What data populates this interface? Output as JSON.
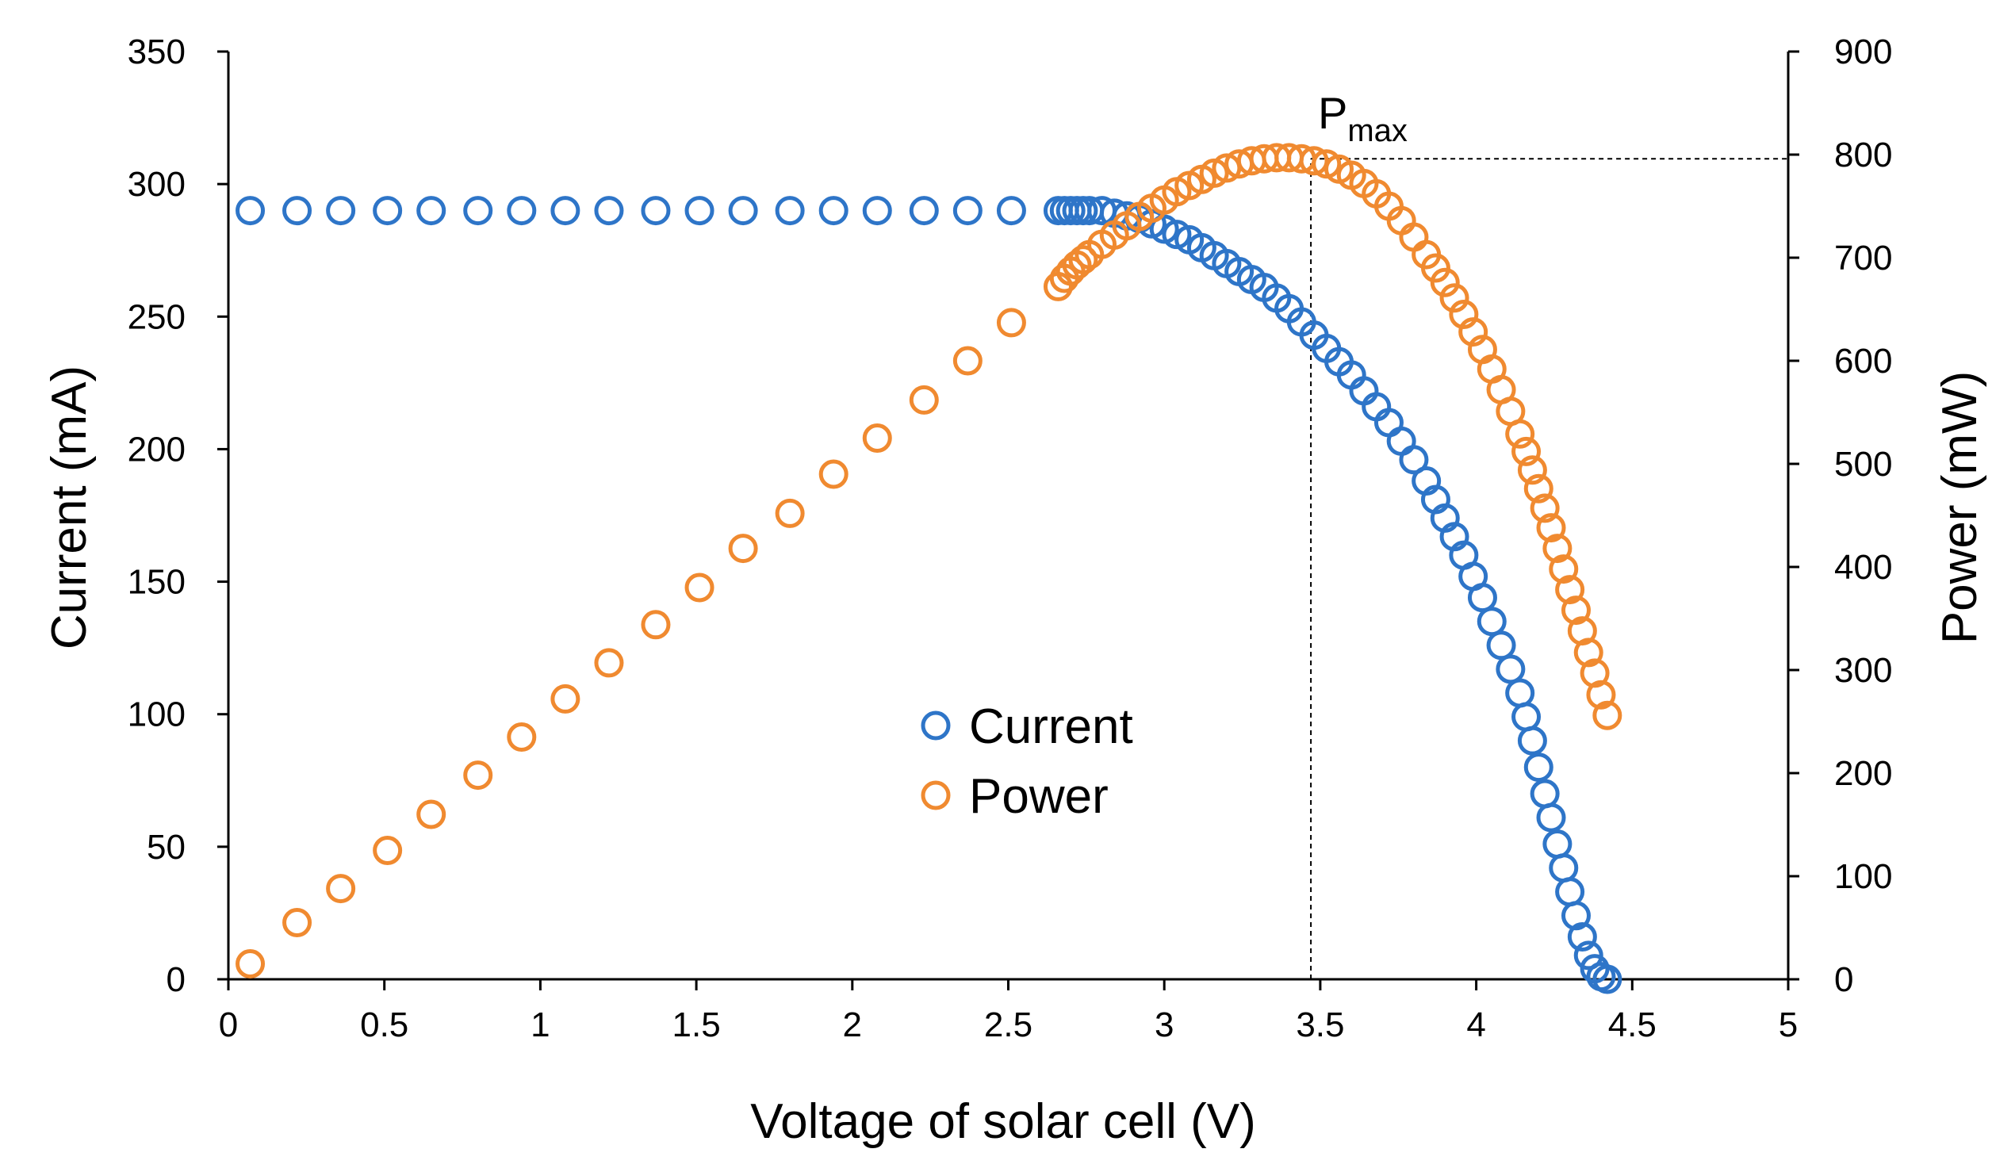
{
  "chart_data": {
    "type": "scatter",
    "xlabel": "Voltage of solar cell (V)",
    "ylabel_left": "Current (mA)",
    "ylabel_right": "Power (mW)",
    "xlim": [
      0,
      5
    ],
    "ylim_left": [
      0,
      350
    ],
    "ylim_right": [
      0,
      900
    ],
    "xticks": [
      "0",
      "0.5",
      "1",
      "1.5",
      "2",
      "2.5",
      "3",
      "3.5",
      "4",
      "4.5",
      "5"
    ],
    "yticks_left": [
      "0",
      "50",
      "100",
      "150",
      "200",
      "250",
      "300",
      "350"
    ],
    "yticks_right": [
      "0",
      "100",
      "200",
      "300",
      "400",
      "500",
      "600",
      "700",
      "800",
      "900"
    ],
    "grid": false,
    "legend": {
      "position": "center",
      "entries": [
        "Current",
        "Power"
      ]
    },
    "annotation": {
      "label": "P",
      "subscript": "max",
      "x": 3.47,
      "y_power": 796
    },
    "colors": {
      "current": "#2E75C8",
      "power": "#F08A30",
      "axis": "#000000"
    },
    "series": [
      {
        "name": "Current",
        "axis": "left",
        "x": [
          0.07,
          0.22,
          0.36,
          0.51,
          0.65,
          0.8,
          0.94,
          1.08,
          1.22,
          1.37,
          1.51,
          1.65,
          1.8,
          1.94,
          2.08,
          2.23,
          2.37,
          2.51,
          2.66,
          2.68,
          2.7,
          2.72,
          2.74,
          2.76,
          2.8,
          2.84,
          2.88,
          2.92,
          2.96,
          3.0,
          3.04,
          3.08,
          3.12,
          3.16,
          3.2,
          3.24,
          3.28,
          3.32,
          3.36,
          3.4,
          3.44,
          3.48,
          3.52,
          3.56,
          3.6,
          3.64,
          3.68,
          3.72,
          3.76,
          3.8,
          3.84,
          3.87,
          3.9,
          3.93,
          3.96,
          3.99,
          4.02,
          4.05,
          4.08,
          4.11,
          4.14,
          4.16,
          4.18,
          4.2,
          4.22,
          4.24,
          4.26,
          4.28,
          4.3,
          4.32,
          4.34,
          4.36,
          4.38,
          4.4,
          4.42
        ],
        "values": [
          290,
          290,
          290,
          290,
          290,
          290,
          290,
          290,
          290,
          290,
          290,
          290,
          290,
          290,
          290,
          290,
          290,
          290,
          290,
          290,
          290,
          290,
          290,
          290,
          290,
          289,
          288,
          287,
          285,
          283,
          281,
          279,
          276,
          273,
          270,
          267,
          264,
          261,
          257,
          253,
          248,
          243,
          238,
          233,
          228,
          222,
          216,
          210,
          203,
          196,
          188,
          181,
          174,
          167,
          160,
          152,
          144,
          135,
          126,
          117,
          108,
          99,
          90,
          80,
          70,
          61,
          51,
          42,
          33,
          24,
          16,
          9,
          4,
          1,
          0
        ]
      },
      {
        "name": "Power",
        "axis": "right",
        "x": [
          0.07,
          0.22,
          0.36,
          0.51,
          0.65,
          0.8,
          0.94,
          1.08,
          1.22,
          1.37,
          1.51,
          1.65,
          1.8,
          1.94,
          2.08,
          2.23,
          2.37,
          2.51,
          2.66,
          2.68,
          2.7,
          2.72,
          2.74,
          2.76,
          2.8,
          2.84,
          2.88,
          2.92,
          2.96,
          3.0,
          3.04,
          3.08,
          3.12,
          3.16,
          3.2,
          3.24,
          3.28,
          3.32,
          3.36,
          3.4,
          3.44,
          3.48,
          3.52,
          3.56,
          3.6,
          3.64,
          3.68,
          3.72,
          3.76,
          3.8,
          3.84,
          3.87,
          3.9,
          3.93,
          3.96,
          3.99,
          4.02,
          4.05,
          4.08,
          4.11,
          4.14,
          4.16,
          4.18,
          4.2,
          4.22,
          4.24,
          4.26,
          4.28,
          4.3,
          4.32,
          4.34,
          4.36,
          4.38,
          4.4,
          4.42
        ],
        "values": [
          15,
          55,
          88,
          125,
          160,
          198,
          235,
          272,
          307,
          344,
          380,
          418,
          452,
          490,
          525,
          562,
          600,
          637,
          672,
          680,
          687,
          693,
          698,
          703,
          713,
          722,
          731,
          740,
          748,
          756,
          764,
          770,
          776,
          782,
          787,
          791,
          794,
          796,
          797,
          797,
          796,
          794,
          791,
          786,
          780,
          772,
          762,
          750,
          736,
          720,
          703,
          690,
          676,
          661,
          645,
          628,
          611,
          592,
          572,
          551,
          529,
          512,
          494,
          476,
          457,
          438,
          418,
          398,
          378,
          358,
          338,
          317,
          297,
          276,
          256
        ]
      }
    ]
  }
}
